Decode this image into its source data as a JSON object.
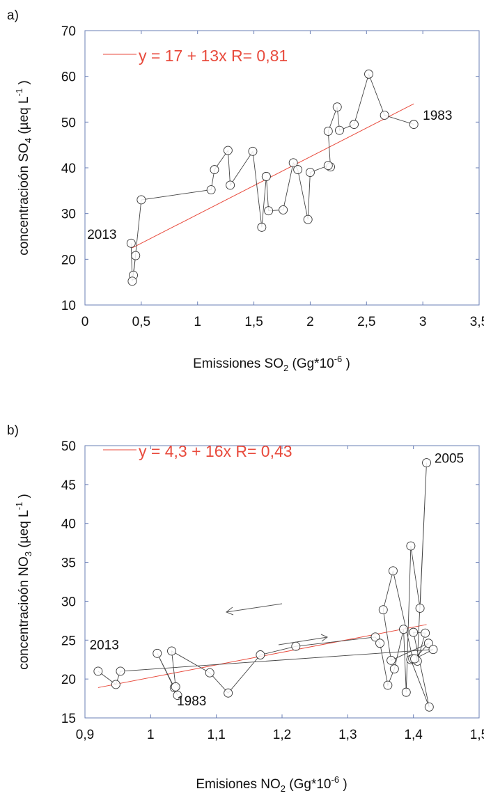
{
  "chart_data": [
    {
      "type": "scatter",
      "panel_label": "a)",
      "xlabel_main": "Emissiones SO",
      "xlabel_sub": "2",
      "xlabel_rest": " (Gg*10",
      "xlabel_exp": "-6",
      "xlabel_end": " )",
      "ylabel_main": "concentracioón SO",
      "ylabel_sub": "4",
      "ylabel_rest": " (µeq L",
      "ylabel_exp": "-1",
      "ylabel_end": " )",
      "xlim": [
        0,
        3.5
      ],
      "ylim": [
        10,
        70
      ],
      "xticks": [
        0,
        0.5,
        1,
        1.5,
        2,
        2.5,
        3,
        3.5
      ],
      "xtick_labels": [
        "0",
        "0,5",
        "1",
        "1,5",
        "2",
        "2,5",
        "3",
        "3,5"
      ],
      "yticks": [
        10,
        20,
        30,
        40,
        50,
        60,
        70
      ],
      "ytick_labels": [
        "10",
        "20",
        "30",
        "40",
        "50",
        "60",
        "70"
      ],
      "legend": "y = 17 + 13x   R= 0,81",
      "regression": {
        "x": [
          0.42,
          2.92
        ],
        "y": [
          22.5,
          54
        ]
      },
      "annotations": [
        {
          "text": "2013",
          "x": 0.02,
          "y": 24.5
        },
        {
          "text": "1983",
          "x": 3.0,
          "y": 50.5
        }
      ],
      "series": [
        {
          "x": [
            2.92,
            2.66,
            2.52,
            2.39,
            2.26,
            2.24,
            2.16,
            2.18,
            2.16,
            2.0,
            1.98,
            1.89,
            1.85,
            1.76,
            1.63,
            1.61,
            1.61,
            1.57,
            1.49,
            1.29,
            1.27,
            1.15,
            1.12,
            0.5,
            0.43,
            0.45,
            0.42,
            0.41
          ],
          "y": [
            49.5,
            51.5,
            60.5,
            49.5,
            48.2,
            53.3,
            48.0,
            40.2,
            40.5,
            39.0,
            28.7,
            39.6,
            41.1,
            30.8,
            30.6,
            38.1,
            38.1,
            27.0,
            43.6,
            36.2,
            43.8,
            39.6,
            35.2,
            33.0,
            16.5,
            20.8,
            15.2,
            23.5
          ]
        }
      ]
    },
    {
      "type": "scatter",
      "panel_label": "b)",
      "xlabel_main": "Emisiones NO",
      "xlabel_sub": "2",
      "xlabel_rest": " (Gg*10",
      "xlabel_exp": "-6",
      "xlabel_end": " )",
      "ylabel_main": "concentracioón NO",
      "ylabel_sub": "3",
      "ylabel_rest": " (µeq L",
      "ylabel_exp": "-1",
      "ylabel_end": " )",
      "xlim": [
        0.9,
        1.5
      ],
      "ylim": [
        15,
        50
      ],
      "xticks": [
        0.9,
        1.0,
        1.1,
        1.2,
        1.3,
        1.4,
        1.5
      ],
      "xtick_labels": [
        "0,9",
        "1",
        "1,1",
        "1,2",
        "1,3",
        "1,4",
        "1,5"
      ],
      "yticks": [
        15,
        20,
        25,
        30,
        35,
        40,
        45,
        50
      ],
      "ytick_labels": [
        "15",
        "20",
        "25",
        "30",
        "35",
        "40",
        "45",
        "50"
      ],
      "legend": "y = 4,3 + 16x   R= 0,43",
      "regression": {
        "x": [
          0.92,
          1.42
        ],
        "y": [
          18.9,
          27.0
        ]
      },
      "annotations": [
        {
          "text": "2013",
          "x": 0.907,
          "y": 23.8
        },
        {
          "text": "1983",
          "x": 1.04,
          "y": 16.6
        },
        {
          "text": "2005",
          "x": 1.432,
          "y": 47.8
        }
      ],
      "series": [
        {
          "x": [
            1.041,
            1.01,
            1.036,
            1.038,
            1.032,
            1.09,
            1.118,
            1.167,
            1.221,
            1.342,
            1.349,
            1.361,
            1.371,
            1.385,
            1.389,
            1.396,
            1.41,
            1.42,
            1.406,
            1.418,
            1.4,
            1.424,
            1.396,
            1.399,
            1.369,
            1.354,
            1.366,
            1.423,
            1.402,
            1.43,
            0.954,
            0.947,
            0.92
          ],
          "y": [
            17.9,
            23.3,
            18.9,
            19.0,
            23.6,
            20.8,
            18.2,
            23.1,
            24.2,
            25.4,
            24.6,
            19.2,
            21.3,
            26.4,
            18.3,
            37.1,
            29.1,
            47.8,
            22.3,
            25.9,
            26.0,
            16.4,
            22.5,
            22.6,
            33.9,
            28.9,
            22.4,
            24.6,
            22.6,
            23.8,
            21.0,
            19.3,
            21.0
          ]
        }
      ]
    }
  ]
}
